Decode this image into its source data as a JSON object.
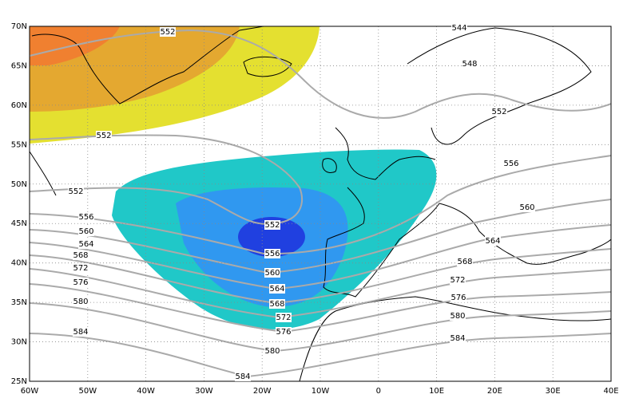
{
  "map": {
    "x_labels": [
      "60W",
      "50W",
      "40W",
      "30W",
      "20W",
      "10W",
      "0",
      "10E",
      "20E",
      "30E",
      "40E"
    ],
    "y_labels": [
      "70N",
      "65N",
      "60N",
      "55N",
      "50N",
      "45N",
      "40N",
      "35N",
      "30N",
      "25N"
    ],
    "contour_labels": [
      "552",
      "544",
      "548",
      "552",
      "552",
      "556",
      "552",
      "556",
      "560",
      "560",
      "564",
      "564",
      "568",
      "568",
      "572",
      "572",
      "576",
      "576",
      "580",
      "580",
      "584",
      "584",
      "552",
      "556",
      "560",
      "564",
      "568",
      "572",
      "576",
      "580",
      "584"
    ]
  }
}
